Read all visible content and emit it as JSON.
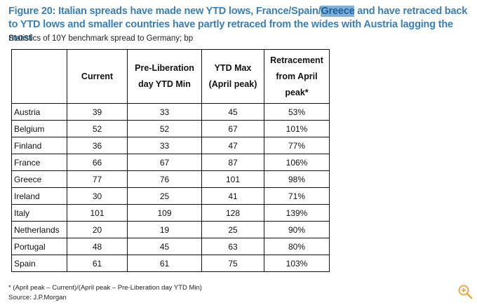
{
  "title": {
    "part1": "Figure 20: Italian spreads have made new YTD lows, France/Spain/",
    "highlight": "Greece",
    "part2": " and have retraced back to YTD lows and smaller countries have partly retraced from the wides with Austria lagging the most"
  },
  "subtitle": "Statistics of 10Y benchmark spread to Germany; bp",
  "table": {
    "headers": [
      "",
      "Current",
      "Pre-Liberation day YTD Min",
      "YTD Max (April peak)",
      "Retracement from April peak*"
    ],
    "rows": [
      [
        "Austria",
        "39",
        "33",
        "45",
        "53%"
      ],
      [
        "Belgium",
        "52",
        "52",
        "67",
        "101%"
      ],
      [
        "Finland",
        "36",
        "33",
        "47",
        "77%"
      ],
      [
        "France",
        "66",
        "67",
        "87",
        "106%"
      ],
      [
        "Greece",
        "77",
        "76",
        "101",
        "98%"
      ],
      [
        "Ireland",
        "30",
        "25",
        "41",
        "71%"
      ],
      [
        "Italy",
        "101",
        "109",
        "128",
        "139%"
      ],
      [
        "Netherlands",
        "20",
        "19",
        "25",
        "90%"
      ],
      [
        "Portugal",
        "48",
        "45",
        "63",
        "80%"
      ],
      [
        "Spain",
        "61",
        "61",
        "75",
        "103%"
      ]
    ]
  },
  "footnote": "* (April peak – Current)/(April peak – Pre-Liberation day YTD Min)",
  "source": "Source: J.P.Morgan",
  "icons": {
    "zoom": "zoom-in-icon"
  },
  "colors": {
    "title": "#3a7fb5",
    "highlight": "#7fb0dc",
    "zoom": "#e8a94a"
  }
}
